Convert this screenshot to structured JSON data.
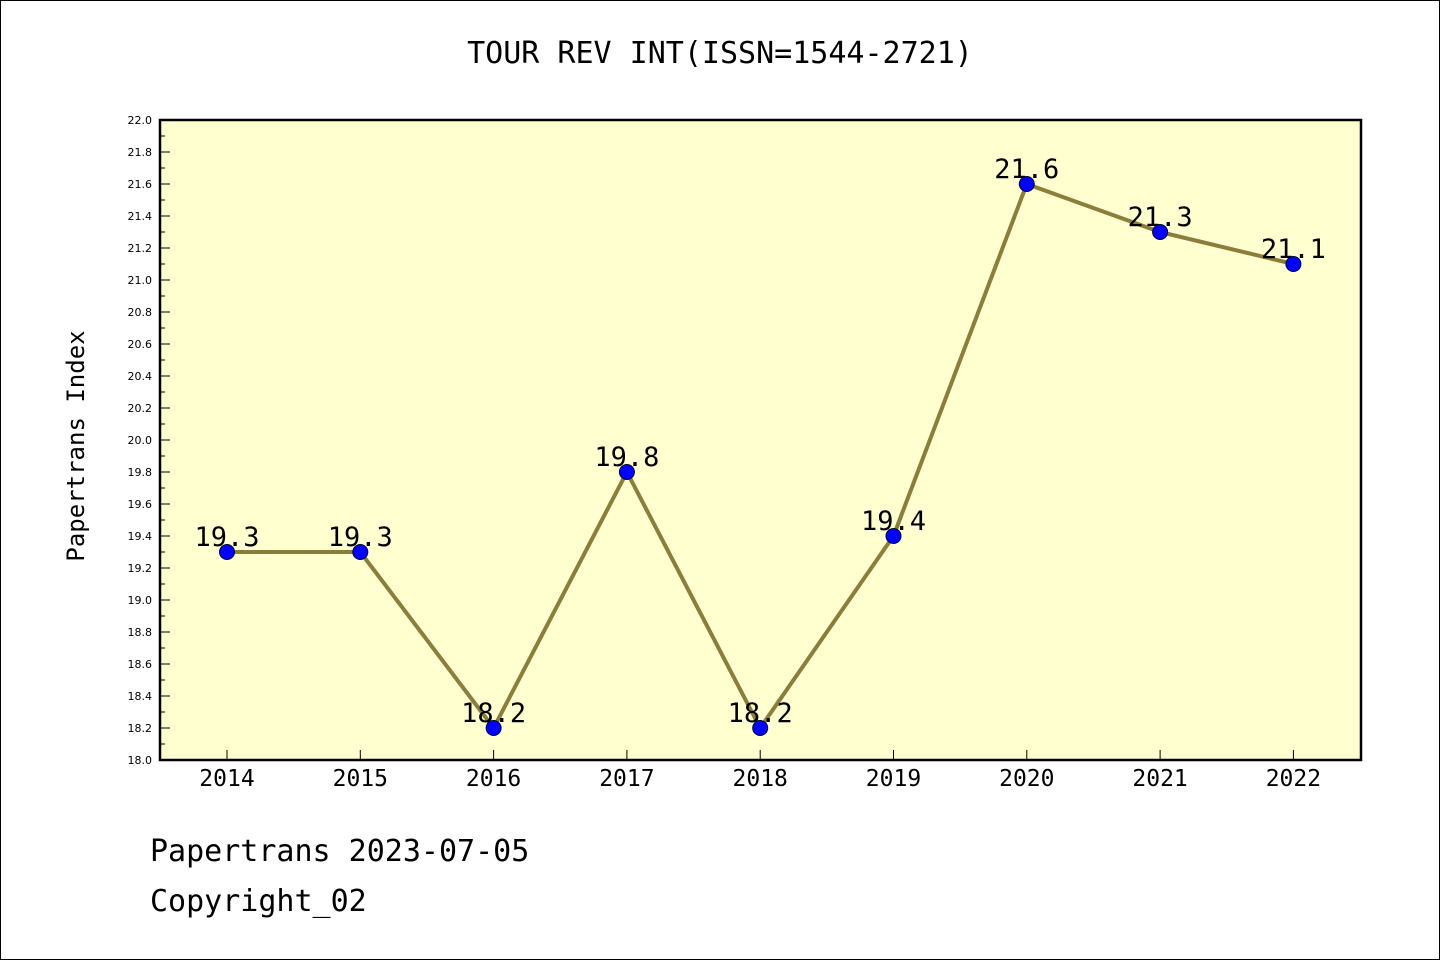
{
  "chart_data": {
    "type": "line",
    "title": "TOUR REV INT(ISSN=1544-2721)",
    "xlabel": "",
    "ylabel": "Papertrans Index",
    "categories": [
      "2014",
      "2015",
      "2016",
      "2017",
      "2018",
      "2019",
      "2020",
      "2021",
      "2022"
    ],
    "series": [
      {
        "values": [
          19.3,
          19.3,
          18.2,
          19.8,
          18.2,
          19.4,
          21.6,
          21.3,
          21.1
        ],
        "labels": [
          "19.3",
          "19.3",
          "18.2",
          "19.8",
          "18.2",
          "19.4",
          "21.6",
          "21.3",
          "21.1"
        ]
      }
    ],
    "ylim": [
      18.0,
      22.0
    ],
    "yticks": [
      "18.0",
      "18.2",
      "18.4",
      "18.6",
      "18.8",
      "19.0",
      "19.2",
      "19.4",
      "19.6",
      "19.8",
      "20.0",
      "20.2",
      "20.4",
      "20.6",
      "20.8",
      "21.0",
      "21.2",
      "21.4",
      "21.6",
      "21.8",
      "22.0"
    ],
    "grid": false,
    "legend": "none"
  },
  "footer": {
    "date_line": "Papertrans 2023-07-05",
    "copyright_line": "Copyright_02"
  },
  "colors": {
    "plot_background": "#ffffd0",
    "line": "#8b7d3a",
    "marker": "#0000ff",
    "axis": "#000000"
  }
}
